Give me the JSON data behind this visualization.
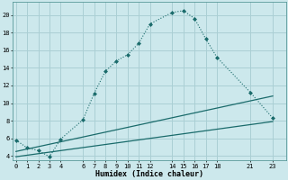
{
  "xlabel": "Humidex (Indice chaleur)",
  "bg_color": "#cce8ec",
  "grid_color": "#aacfd4",
  "line_color": "#1a6b6b",
  "xlim": [
    -0.3,
    24.2
  ],
  "ylim": [
    3.5,
    21.5
  ],
  "xticks": [
    0,
    1,
    2,
    3,
    4,
    6,
    7,
    8,
    9,
    10,
    11,
    12,
    14,
    15,
    16,
    17,
    18,
    21,
    23
  ],
  "yticks": [
    4,
    6,
    8,
    10,
    12,
    14,
    16,
    18,
    20
  ],
  "curve1_x": [
    0,
    1,
    2,
    3,
    4,
    6,
    7,
    8,
    9,
    10,
    11,
    12,
    14,
    15,
    16,
    17,
    18,
    21,
    23
  ],
  "curve1_y": [
    5.8,
    4.9,
    4.6,
    3.9,
    5.9,
    8.1,
    11.1,
    13.6,
    14.8,
    15.5,
    16.8,
    19.0,
    20.3,
    20.5,
    19.6,
    17.3,
    15.2,
    11.2,
    8.3
  ],
  "curve2_x": [
    0,
    23
  ],
  "curve2_y": [
    4.5,
    10.8
  ],
  "curve3_x": [
    0,
    23
  ],
  "curve3_y": [
    3.9,
    7.9
  ],
  "tick_fontsize": 5.0,
  "xlabel_fontsize": 6.0
}
